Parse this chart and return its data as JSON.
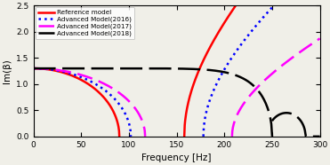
{
  "title": "",
  "xlabel": "Frequency [Hz]",
  "ylabel": "Im(β)",
  "xlim": [
    0,
    300
  ],
  "ylim": [
    0,
    2.5
  ],
  "xticks": [
    0,
    50,
    100,
    150,
    200,
    250,
    300
  ],
  "yticks": [
    0,
    0.5,
    1,
    1.5,
    2,
    2.5
  ],
  "legend_entries": [
    "Reference model",
    "Advanced Model(2016)",
    "Advanced Model(2017)",
    "Advanced Model(2018)"
  ],
  "colors": [
    "#ff0000",
    "#0000ff",
    "#ff00ff",
    "#000000"
  ],
  "background_color": "#f0efe8",
  "curves": {
    "ref": {
      "fc1": 90,
      "fc2": 158,
      "A": 1.3,
      "rise_scale": 2.8
    },
    "a2016": {
      "fc1": 102,
      "fc2": 178,
      "A": 1.3,
      "rise_scale": 2.5
    },
    "a2017": {
      "fc1": 117,
      "fc2": 208,
      "A": 1.3,
      "rise_scale": 1.8
    },
    "a2018": {
      "fc1": 250,
      "fc2": 255,
      "A": 1.3,
      "rise_scale": 0.5,
      "power": 10
    }
  }
}
